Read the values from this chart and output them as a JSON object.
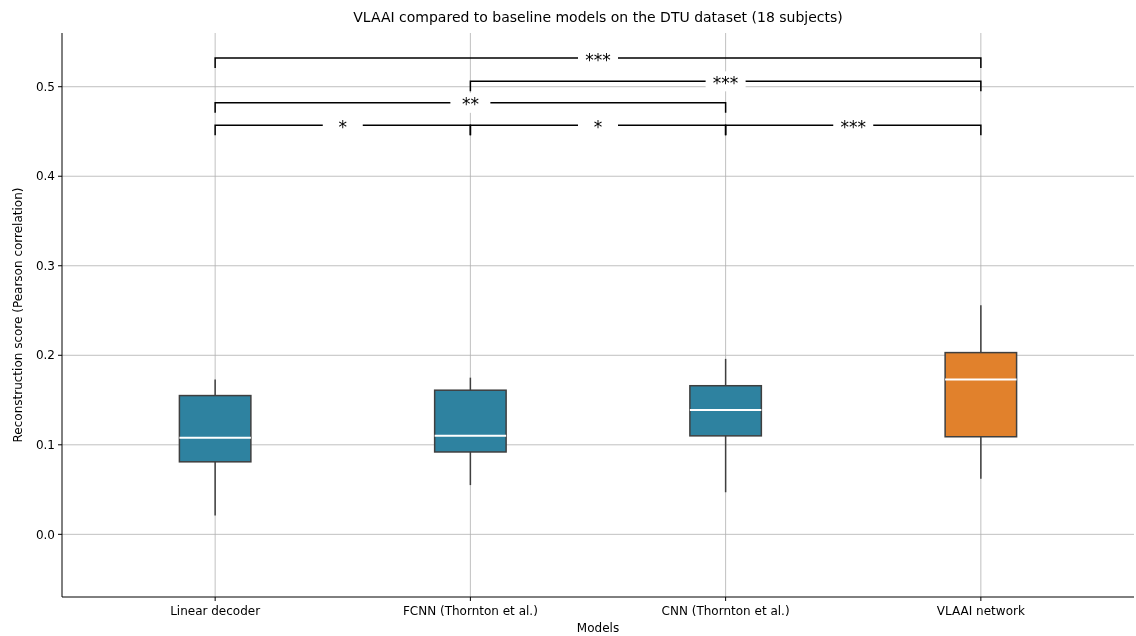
{
  "chart_data": {
    "type": "box",
    "title": "VLAAI compared to baseline models on the DTU dataset (18 subjects)",
    "xlabel": "Models",
    "ylabel": "Reconstruction score (Pearson correlation)",
    "categories": [
      "Linear decoder",
      "FCNN (Thornton et al.)",
      "CNN (Thornton et al.)",
      "VLAAI network"
    ],
    "boxes": [
      {
        "low": 0.021,
        "q1": 0.081,
        "median": 0.108,
        "q3": 0.155,
        "high": 0.173
      },
      {
        "low": 0.055,
        "q1": 0.092,
        "median": 0.11,
        "q3": 0.161,
        "high": 0.175
      },
      {
        "low": 0.047,
        "q1": 0.11,
        "median": 0.139,
        "q3": 0.166,
        "high": 0.196
      },
      {
        "low": 0.062,
        "q1": 0.109,
        "median": 0.173,
        "q3": 0.203,
        "high": 0.256
      }
    ],
    "colors": [
      "#2e82a0",
      "#2e82a0",
      "#2e82a0",
      "#e1812c"
    ],
    "ylim": [
      -0.07,
      0.56
    ],
    "yticks": [
      {
        "value": 0,
        "label": "0.0"
      },
      0.1,
      0.2,
      0.3,
      0.4,
      0.5
    ],
    "grid": true,
    "annotations": [
      "***",
      "***",
      "**",
      "*",
      "*",
      "***"
    ]
  }
}
